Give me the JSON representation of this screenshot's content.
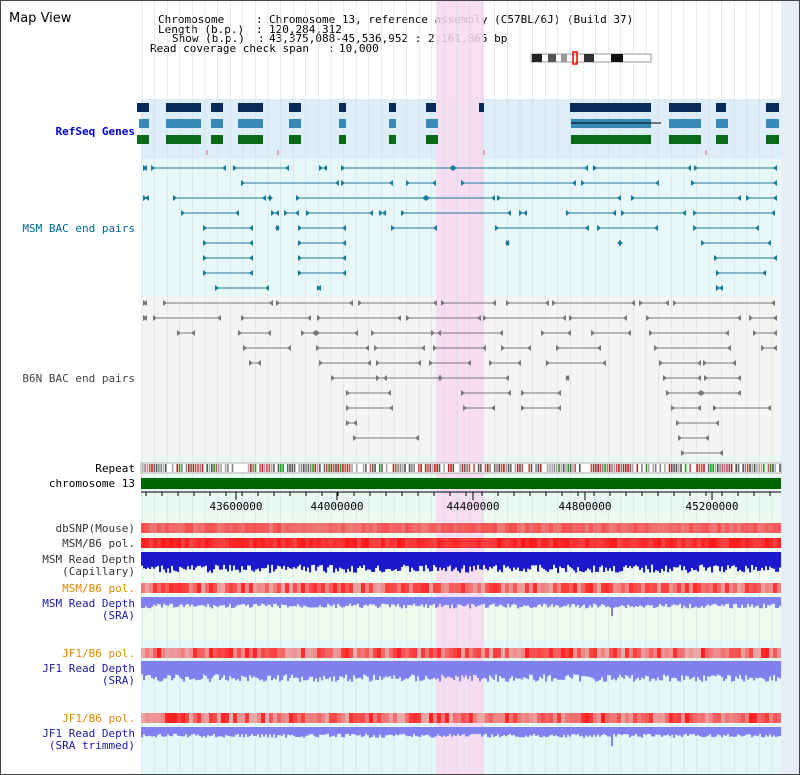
{
  "view_title": "Map View",
  "header": {
    "chromosome_label": "Chromosome",
    "chromosome_value": "Chromosome 13, reference assembly (C57BL/6J) (Build 37)",
    "length_label": "Length (b.p.)",
    "length_value": "120,284,312",
    "show_label": "Show (b.p.)",
    "show_value": "43,375,088-45,536,952 : 2,161,865 bp",
    "coverage_label": "Read coverage check span",
    "coverage_value": "10,000"
  },
  "tracks": {
    "refseq": "RefSeq Genes",
    "msm_bac": "MSM BAC end pairs",
    "b6n_bac": "B6N BAC end pairs",
    "repeat": "Repeat",
    "chromosome": "chromosome 13",
    "dbsnp": "dbSNP(Mouse)",
    "msm_b6_pol_1": "MSM/B6 pol.",
    "msm_depth_cap_1": "MSM Read Depth",
    "msm_depth_cap_2": "(Capillary)",
    "msm_b6_pol_2": "MSM/B6 pol.",
    "msm_depth_sra_1": "MSM Read Depth",
    "msm_depth_sra_2": "(SRA)",
    "jf1_b6_pol_1": "JF1/B6 pol.",
    "jf1_depth_sra_1": "JF1 Read Depth",
    "jf1_depth_sra_2": "(SRA)",
    "jf1_b6_pol_2": "JF1/B6 pol.",
    "jf1_depth_trim_1": "JF1 Read Depth",
    "jf1_depth_trim_2": "(SRA trimmed)"
  },
  "axis_ticks": [
    "43600000",
    "44000000",
    "44400000",
    "44800000",
    "45200000"
  ],
  "colors": {
    "refseq_bg": "#ddeef8",
    "bac_bg": "#e8f8f8",
    "highlight": "#f8d8f0",
    "chromosome_bar": "#006600",
    "depth_dark": "#1a1acc",
    "depth_light": "#8080ee",
    "polymorphism": "#e83030",
    "msm_bac_pair": "#1a7a9a",
    "b6n_bac_pair": "#777777"
  }
}
